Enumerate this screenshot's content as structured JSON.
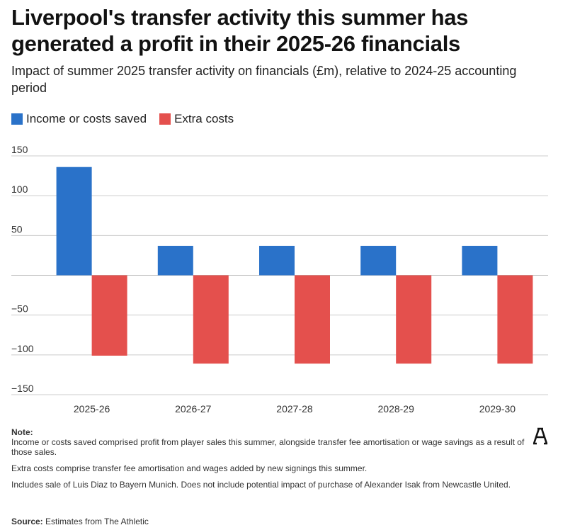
{
  "title": "Liverpool's transfer activity this summer has generated a profit in their 2025-26 financials",
  "subtitle": "Impact of summer 2025 transfer activity on financials (£m), relative to 2024-25 accounting period",
  "legend": {
    "income": "Income or costs saved",
    "costs": "Extra costs"
  },
  "colors": {
    "income": "#2a72c9",
    "costs": "#e4504d",
    "grid": "#cccccc"
  },
  "chart_data": {
    "type": "bar",
    "title": "Liverpool's transfer activity this summer has generated a profit in their 2025-26 financials",
    "ylabel": "£m",
    "xlabel": "",
    "categories": [
      "2025-26",
      "2026-27",
      "2027-28",
      "2028-29",
      "2029-30"
    ],
    "series": [
      {
        "name": "Income or costs saved",
        "values": [
          136,
          37,
          37,
          37,
          37
        ]
      },
      {
        "name": "Extra costs",
        "values": [
          -101,
          -111,
          -111,
          -111,
          -111
        ]
      }
    ],
    "ylim": [
      -150,
      150
    ],
    "yticks": [
      150,
      100,
      50,
      0,
      -50,
      -100,
      -150
    ],
    "ytick_labels": [
      "150",
      "100",
      "50",
      "",
      "−50",
      "−100",
      "−150"
    ],
    "grid": true,
    "legend_position": "top-left"
  },
  "notes": {
    "label": "Note:",
    "line1": "Income or costs saved comprised profit from player sales this summer, alongside transfer fee amortisation or wage savings as a result of those sales.",
    "line2": "Extra costs comprise transfer fee amortisation and wages added by new signings this summer.",
    "line3": "Includes sale of Luis Diaz to Bayern Munich. Does not include potential impact of purchase of Alexander Isak from Newcastle United.",
    "source_label": "Source:",
    "source_text": "Estimates from The Athletic"
  },
  "logo_icon": "the-athletic-logo-icon"
}
